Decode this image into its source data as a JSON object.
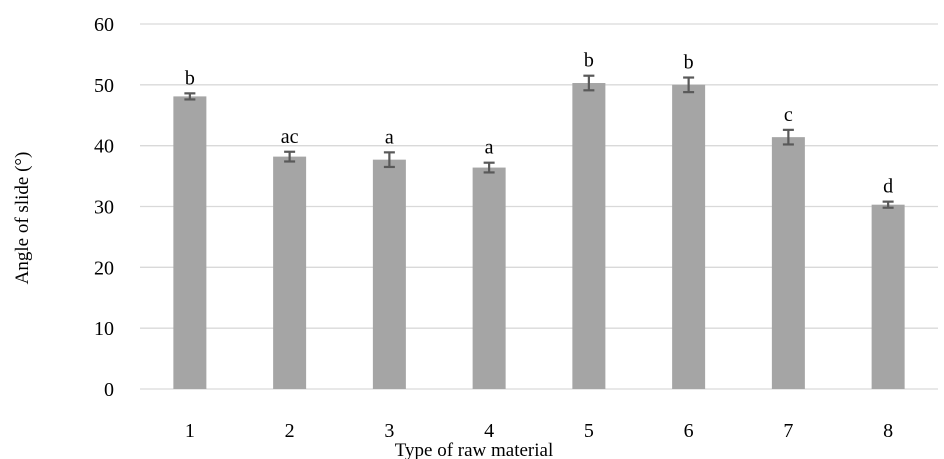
{
  "chart_data": {
    "type": "bar",
    "title": "",
    "xlabel": "Type of raw material",
    "ylabel": "Angle of slide (°)",
    "categories": [
      "1",
      "2",
      "3",
      "4",
      "5",
      "6",
      "7",
      "8"
    ],
    "values": [
      48.1,
      38.2,
      37.7,
      36.4,
      50.3,
      50.0,
      41.4,
      30.3
    ],
    "error": [
      0.5,
      0.8,
      1.2,
      0.8,
      1.2,
      1.2,
      1.2,
      0.5
    ],
    "labels": [
      "b",
      "ac",
      "a",
      "a",
      "b",
      "b",
      "c",
      "d"
    ],
    "ylim": [
      0,
      60
    ],
    "yticks": [
      0,
      10,
      20,
      30,
      40,
      50,
      60
    ],
    "grid": true,
    "legend": "none",
    "bar_color": "#a5a5a5",
    "error_color": "#595959",
    "grid_color": "#d9d9d9"
  }
}
